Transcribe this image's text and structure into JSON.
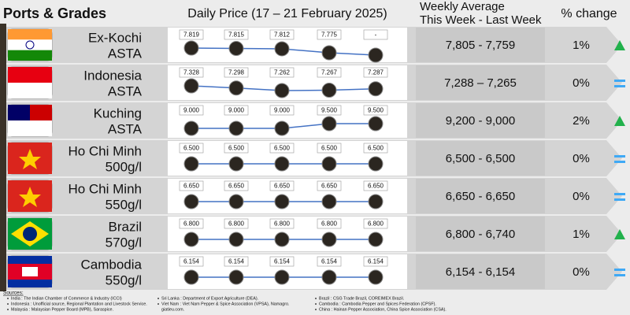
{
  "header": {
    "ports_title": "Ports & Grades",
    "daily_title": "Daily Price (17 – 21 February 2025)",
    "weekly_title_1": "Weekly Average",
    "weekly_title_2": "This Week - Last Week",
    "change_title": "% change"
  },
  "table": {
    "rows": [
      {
        "port": "Ex-Kochi",
        "grade": "ASTA",
        "prices": [
          7819,
          7815,
          7812,
          7775,
          null
        ],
        "price_labels": [
          "7.819",
          "7.815",
          "7.812",
          "7.775",
          "-"
        ],
        "weekly_average": "7,805 - 7,759",
        "change": "1%",
        "trend": "up"
      },
      {
        "port": "Indonesia",
        "grade": "ASTA",
        "prices": [
          7328,
          7298,
          7262,
          7267,
          7287
        ],
        "price_labels": [
          "7.328",
          "7.298",
          "7.262",
          "7.267",
          "7.287"
        ],
        "weekly_average": "7,288 – 7,265",
        "change": "0%",
        "trend": "equal"
      },
      {
        "port": "Kuching",
        "grade": "ASTA",
        "prices": [
          9000,
          9000,
          9000,
          9500,
          9500
        ],
        "price_labels": [
          "9.000",
          "9.000",
          "9.000",
          "9.500",
          "9.500"
        ],
        "weekly_average": "9,200 - 9,000",
        "change": "2%",
        "trend": "up"
      },
      {
        "port": "Ho Chi Minh",
        "grade": "500g/l",
        "prices": [
          6500,
          6500,
          6500,
          6500,
          6500
        ],
        "price_labels": [
          "6.500",
          "6.500",
          "6.500",
          "6.500",
          "6.500"
        ],
        "weekly_average": "6,500 - 6,500",
        "change": "0%",
        "trend": "equal"
      },
      {
        "port": "Ho Chi Minh",
        "grade": "550g/l",
        "prices": [
          6650,
          6650,
          6650,
          6650,
          6650
        ],
        "price_labels": [
          "6.650",
          "6.650",
          "6.650",
          "6.650",
          "6.650"
        ],
        "weekly_average": "6,650 - 6,650",
        "change": "0%",
        "trend": "equal"
      },
      {
        "port": "Brazil",
        "grade": "570g/l",
        "prices": [
          6800,
          6800,
          6800,
          6800,
          6800
        ],
        "price_labels": [
          "6.800",
          "6.800",
          "6.800",
          "6.800",
          "6.800"
        ],
        "weekly_average": "6,800 - 6,740",
        "change": "1%",
        "trend": "up"
      },
      {
        "port": "Cambodia",
        "grade": "550g/l",
        "prices": [
          6154,
          6154,
          6154,
          6154,
          6154
        ],
        "price_labels": [
          "6.154",
          "6.154",
          "6.154",
          "6.154",
          "6.154"
        ],
        "weekly_average": "6,154 - 6,154",
        "change": "0%",
        "trend": "equal"
      }
    ]
  },
  "sources": {
    "title": "Sources:",
    "columns": [
      [
        "India : The Indian Chamber of Commerce & Industry (ICCI)",
        "Indonesia : Unofficial source, Regional Plantation and Livestock Service.",
        "Malaysia : Malaysian Pepper Board (MPB), Saraspice."
      ],
      [
        "Sri Lanka : Department of Export Agriculture (DEA).",
        "Viet Nam : Viet Nam Pepper & Spice Association (VPSA), Namagro.",
        "giatieu.com."
      ],
      [
        "Brazil : CSG Trade Brazil, COREIMEX Brazil.",
        "Cambodia : Cambodia Pepper and Spices Federation (CPSF).",
        "China : Hainan Pepper Association, China Spice Association (CSA)."
      ]
    ]
  }
}
